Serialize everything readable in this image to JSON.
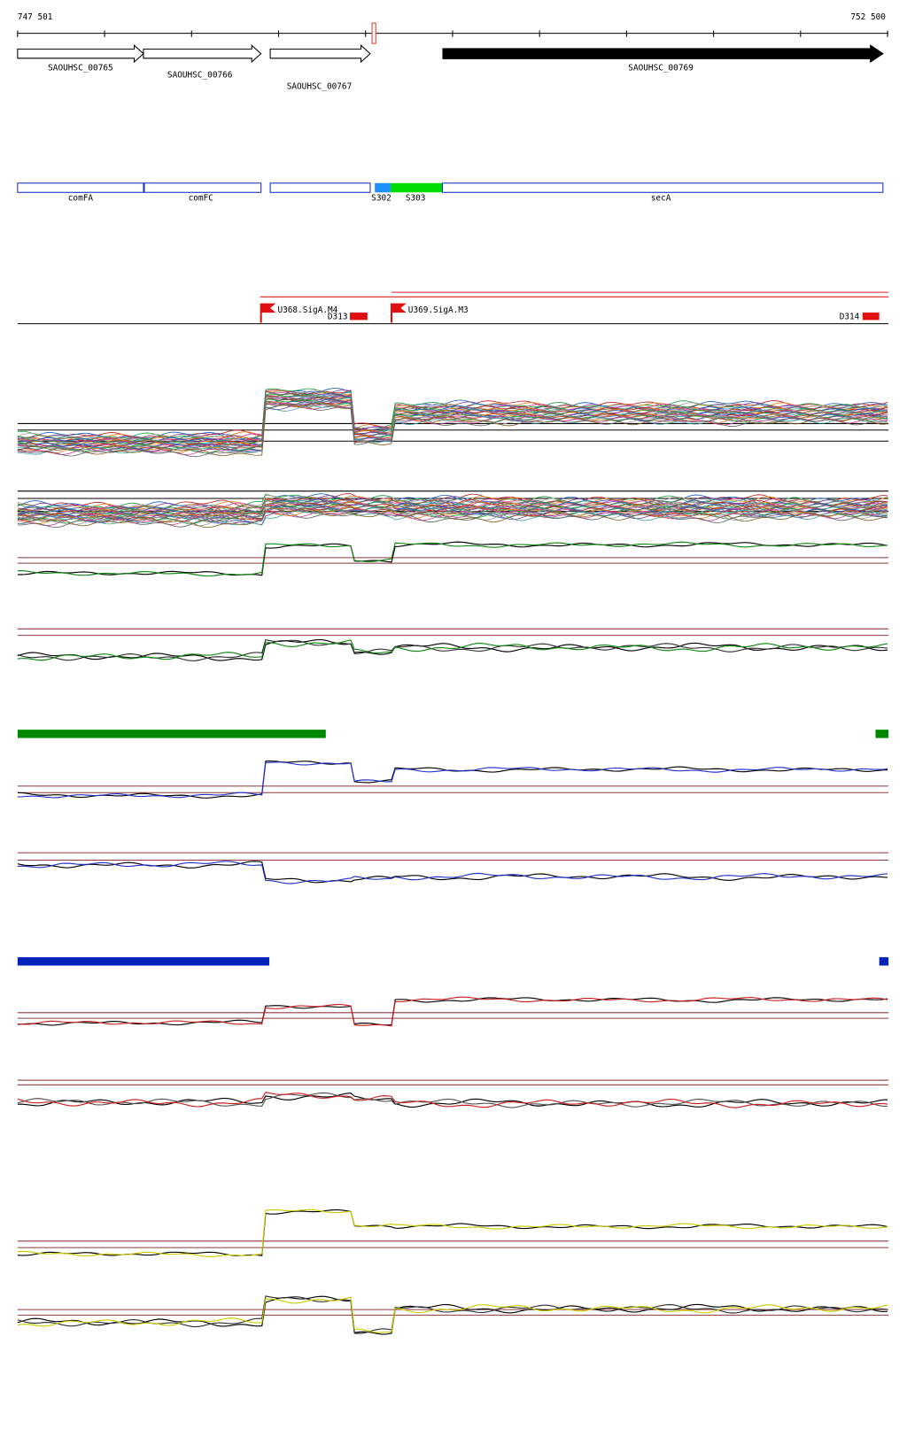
{
  "ruler": {
    "start": "747 501",
    "end": "752 500"
  },
  "genes": [
    {
      "label": "SAOUHSC_00765"
    },
    {
      "label": "SAOUHSC_00766"
    },
    {
      "label": "SAOUHSC_00767"
    },
    {
      "label": "SAOUHSC_00769"
    }
  ],
  "segments": [
    {
      "label": "comFA"
    },
    {
      "label": "comFC"
    },
    {
      "label": "S302"
    },
    {
      "label": "S303"
    },
    {
      "label": "secA"
    }
  ],
  "features": [
    {
      "label": "U368.SigA.M4"
    },
    {
      "label": "D313"
    },
    {
      "label": "U369.SigA.M3"
    },
    {
      "label": "D314"
    }
  ]
}
